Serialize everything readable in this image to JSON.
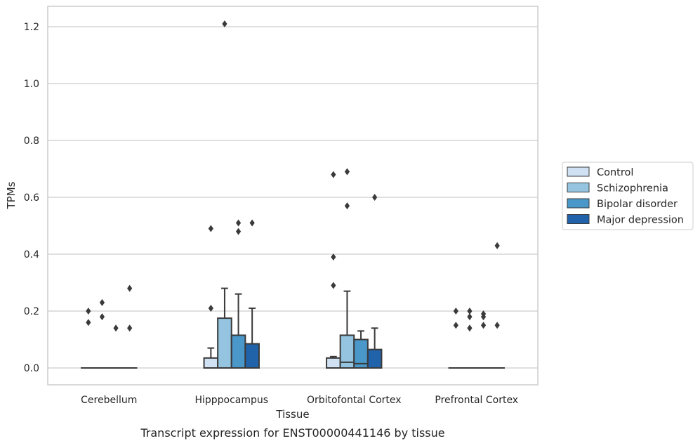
{
  "caption": "Transcript expression for ENST00000441146 by tissue",
  "chart_data": {
    "type": "box",
    "title": "",
    "xlabel": "Tissue",
    "ylabel": "TPMs",
    "ylim": [
      -0.06,
      1.27
    ],
    "yticks": [
      0.0,
      0.2,
      0.4,
      0.6,
      0.8,
      1.0,
      1.2
    ],
    "ytick_labels": [
      "0.0",
      "0.2",
      "0.4",
      "0.6",
      "0.8",
      "1.0",
      "1.2"
    ],
    "grid": "horizontal",
    "legend_position": "right",
    "categories": [
      "Cerebellum",
      "Hipppocampus",
      "Orbitofontal Cortex",
      "Prefrontal Cortex"
    ],
    "series": [
      {
        "name": "Control",
        "color": "#cfe1f2",
        "boxes": [
          {
            "q1": 0,
            "median": 0,
            "q3": 0,
            "whisker_low": 0,
            "whisker_high": 0,
            "outliers": [
              0.2,
              0.16
            ]
          },
          {
            "q1": 0,
            "median": 0,
            "q3": 0.035,
            "whisker_low": 0,
            "whisker_high": 0.07,
            "outliers": [
              0.49,
              0.21
            ]
          },
          {
            "q1": 0,
            "median": 0,
            "q3": 0.035,
            "whisker_low": 0,
            "whisker_high": 0.04,
            "outliers": [
              0.68,
              0.39,
              0.29
            ]
          },
          {
            "q1": 0,
            "median": 0,
            "q3": 0,
            "whisker_low": 0,
            "whisker_high": 0,
            "outliers": [
              0.2,
              0.15
            ]
          }
        ]
      },
      {
        "name": "Schizophrenia",
        "color": "#94c4df",
        "boxes": [
          {
            "q1": 0,
            "median": 0,
            "q3": 0,
            "whisker_low": 0,
            "whisker_high": 0,
            "outliers": [
              0.23,
              0.18
            ]
          },
          {
            "q1": 0,
            "median": 0,
            "q3": 0.175,
            "whisker_low": 0,
            "whisker_high": 0.28,
            "outliers": [
              1.21
            ]
          },
          {
            "q1": 0,
            "median": 0.02,
            "q3": 0.115,
            "whisker_low": 0,
            "whisker_high": 0.27,
            "outliers": [
              0.69,
              0.57
            ]
          },
          {
            "q1": 0,
            "median": 0,
            "q3": 0,
            "whisker_low": 0,
            "whisker_high": 0,
            "outliers": [
              0.2,
              0.18,
              0.14
            ]
          }
        ]
      },
      {
        "name": "Bipolar disorder",
        "color": "#4a98c9",
        "boxes": [
          {
            "q1": 0,
            "median": 0,
            "q3": 0,
            "whisker_low": 0,
            "whisker_high": 0,
            "outliers": [
              0.14
            ]
          },
          {
            "q1": 0,
            "median": 0,
            "q3": 0.115,
            "whisker_low": 0,
            "whisker_high": 0.26,
            "outliers": [
              0.51,
              0.48
            ]
          },
          {
            "q1": 0,
            "median": 0.015,
            "q3": 0.1,
            "whisker_low": 0,
            "whisker_high": 0.13,
            "outliers": []
          },
          {
            "q1": 0,
            "median": 0,
            "q3": 0,
            "whisker_low": 0,
            "whisker_high": 0,
            "outliers": [
              0.19,
              0.18,
              0.15
            ]
          }
        ]
      },
      {
        "name": "Major depression",
        "color": "#2163aa",
        "boxes": [
          {
            "q1": 0,
            "median": 0,
            "q3": 0,
            "whisker_low": 0,
            "whisker_high": 0,
            "outliers": [
              0.28,
              0.14
            ]
          },
          {
            "q1": 0,
            "median": 0,
            "q3": 0.085,
            "whisker_low": 0,
            "whisker_high": 0.21,
            "outliers": [
              0.51
            ]
          },
          {
            "q1": 0,
            "median": 0,
            "q3": 0.065,
            "whisker_low": 0,
            "whisker_high": 0.14,
            "outliers": [
              0.6
            ]
          },
          {
            "q1": 0,
            "median": 0,
            "q3": 0,
            "whisker_low": 0,
            "whisker_high": 0,
            "outliers": [
              0.43,
              0.15
            ]
          }
        ]
      }
    ]
  }
}
